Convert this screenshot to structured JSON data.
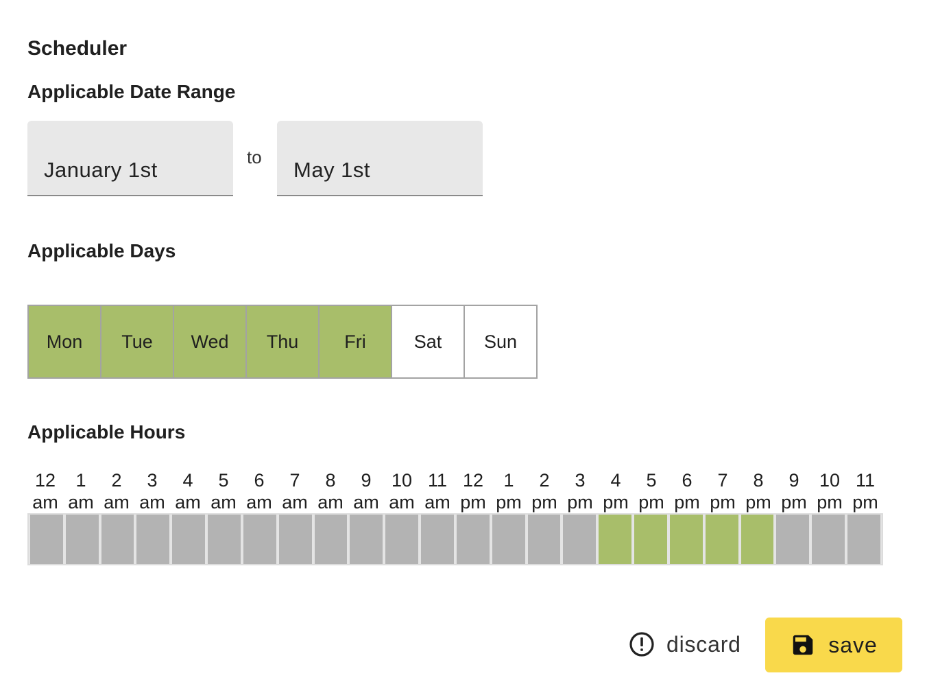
{
  "page": {
    "title": "Scheduler"
  },
  "date_range": {
    "title": "Applicable Date Range",
    "start": "January 1st",
    "separator": "to",
    "end": "May 1st"
  },
  "days": {
    "title": "Applicable Days",
    "items": [
      {
        "label": "Mon",
        "selected": true
      },
      {
        "label": "Tue",
        "selected": true
      },
      {
        "label": "Wed",
        "selected": true
      },
      {
        "label": "Thu",
        "selected": true
      },
      {
        "label": "Fri",
        "selected": true
      },
      {
        "label": "Sat",
        "selected": false
      },
      {
        "label": "Sun",
        "selected": false
      }
    ]
  },
  "hours": {
    "title": "Applicable Hours",
    "items": [
      {
        "hour": "12",
        "period": "am",
        "selected": false
      },
      {
        "hour": "1",
        "period": "am",
        "selected": false
      },
      {
        "hour": "2",
        "period": "am",
        "selected": false
      },
      {
        "hour": "3",
        "period": "am",
        "selected": false
      },
      {
        "hour": "4",
        "period": "am",
        "selected": false
      },
      {
        "hour": "5",
        "period": "am",
        "selected": false
      },
      {
        "hour": "6",
        "period": "am",
        "selected": false
      },
      {
        "hour": "7",
        "period": "am",
        "selected": false
      },
      {
        "hour": "8",
        "period": "am",
        "selected": false
      },
      {
        "hour": "9",
        "period": "am",
        "selected": false
      },
      {
        "hour": "10",
        "period": "am",
        "selected": false
      },
      {
        "hour": "11",
        "period": "am",
        "selected": false
      },
      {
        "hour": "12",
        "period": "pm",
        "selected": false
      },
      {
        "hour": "1",
        "period": "pm",
        "selected": false
      },
      {
        "hour": "2",
        "period": "pm",
        "selected": false
      },
      {
        "hour": "3",
        "period": "pm",
        "selected": false
      },
      {
        "hour": "4",
        "period": "pm",
        "selected": true
      },
      {
        "hour": "5",
        "period": "pm",
        "selected": true
      },
      {
        "hour": "6",
        "period": "pm",
        "selected": true
      },
      {
        "hour": "7",
        "period": "pm",
        "selected": true
      },
      {
        "hour": "8",
        "period": "pm",
        "selected": true
      },
      {
        "hour": "9",
        "period": "pm",
        "selected": false
      },
      {
        "hour": "10",
        "period": "pm",
        "selected": false
      },
      {
        "hour": "11",
        "period": "pm",
        "selected": false
      }
    ]
  },
  "actions": {
    "discard_label": "discard",
    "discard_icon": "alert-circle-icon",
    "save_label": "save",
    "save_icon": "floppy-disk-icon"
  },
  "colors": {
    "selected": "#a8be6a",
    "unselected_day": "#ffffff",
    "unselected_hour": "#b3b3b3",
    "save_button": "#f9d94b",
    "field_background": "#e8e8e8"
  }
}
